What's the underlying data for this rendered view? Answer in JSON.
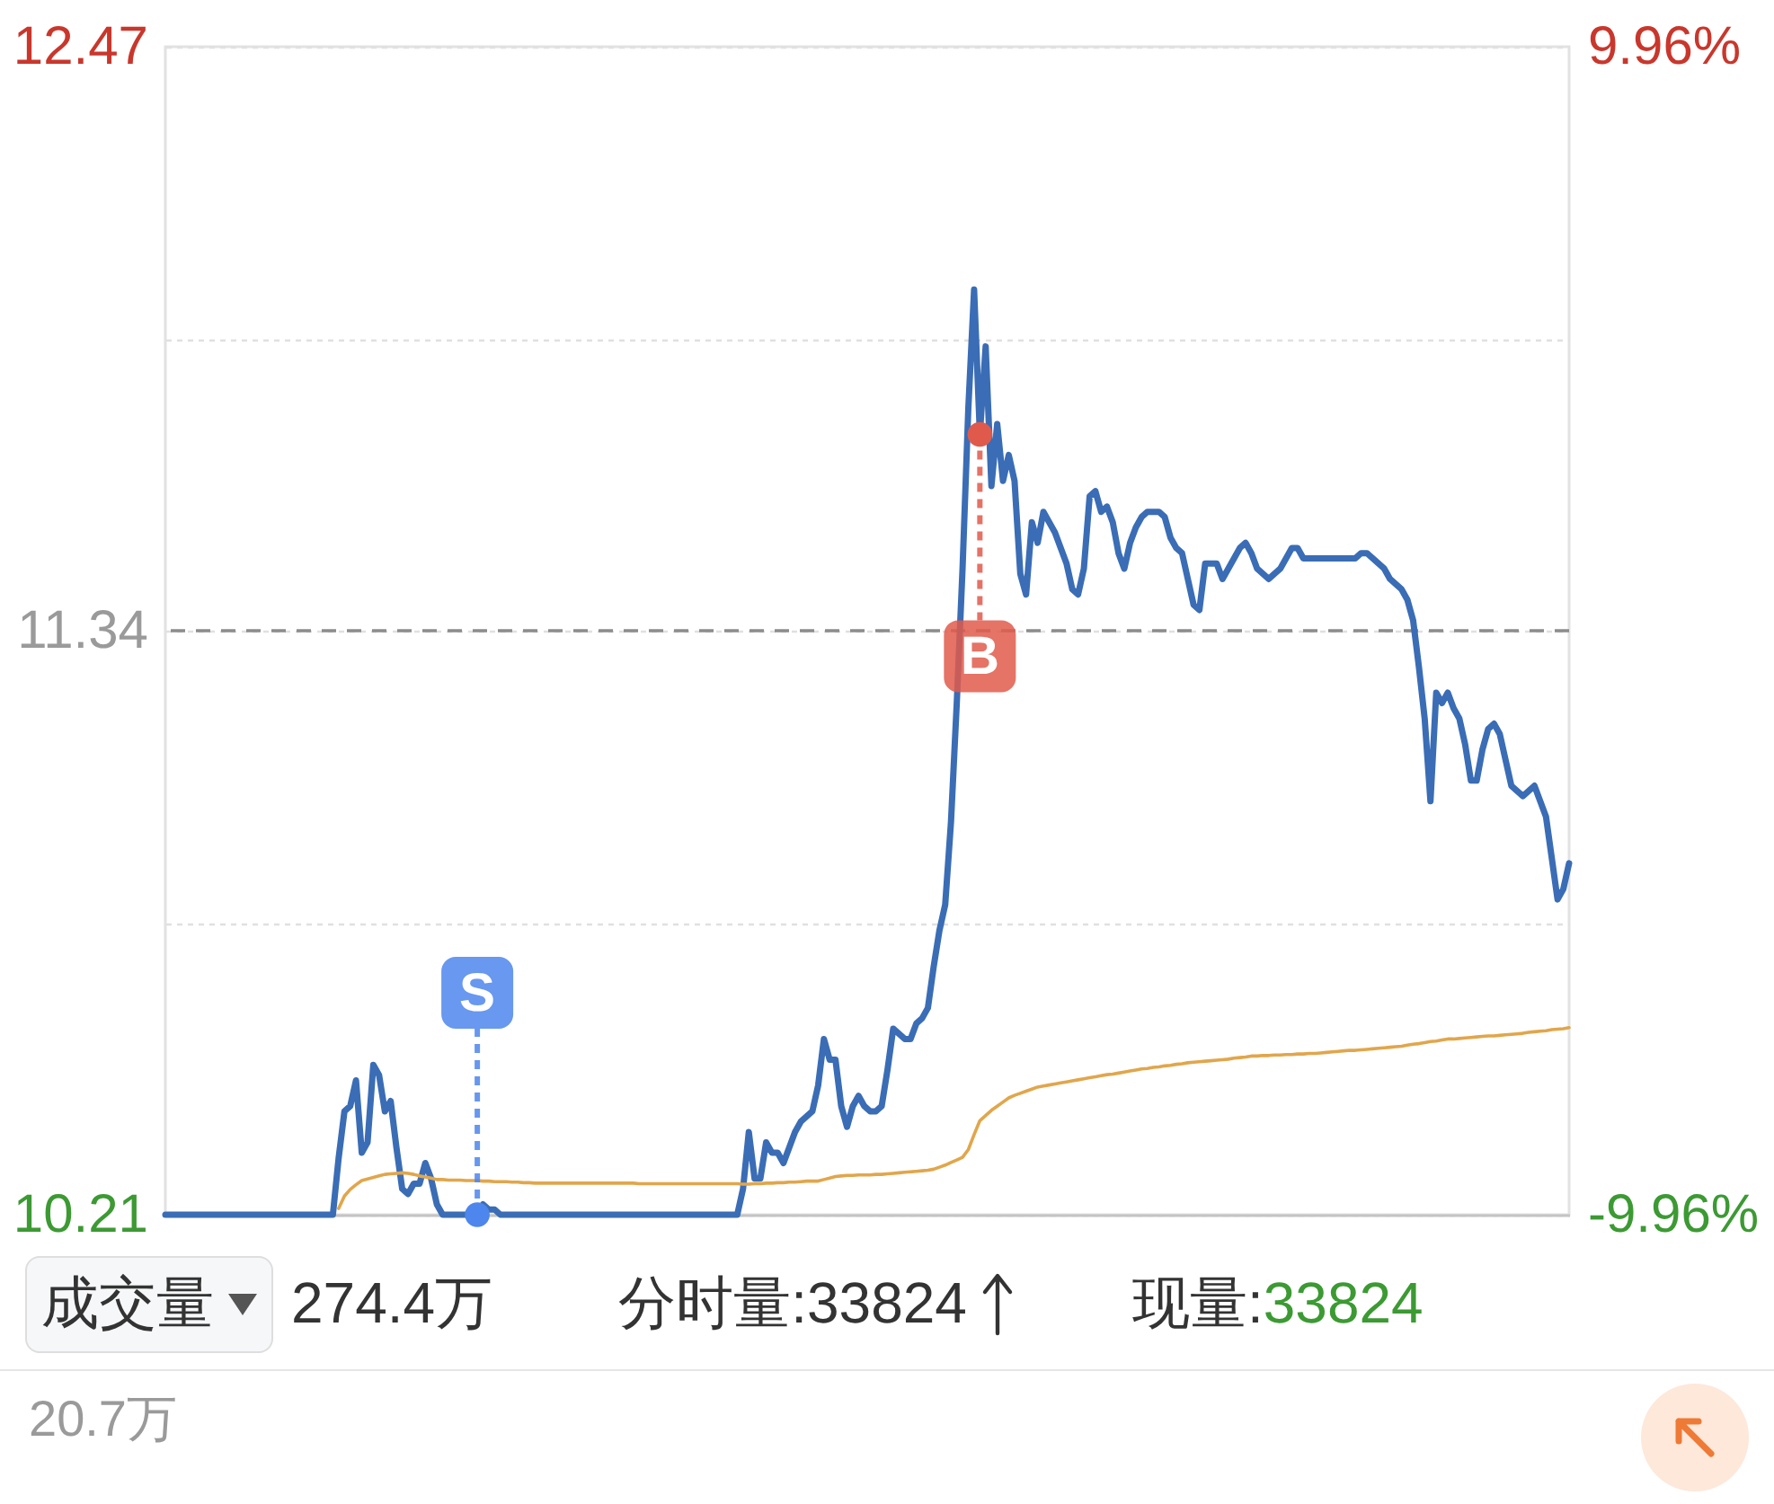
{
  "chart_data": {
    "type": "line",
    "categories": [
      null,
      null,
      null,
      null,
      null,
      null,
      null,
      null,
      null,
      null,
      null,
      null,
      null,
      null,
      null,
      null,
      null,
      null,
      null,
      null,
      null,
      null,
      null,
      null,
      null,
      null,
      null,
      null,
      null,
      null,
      null,
      null,
      null,
      null,
      null,
      null,
      null,
      null,
      null,
      null,
      null,
      null,
      null,
      null,
      null,
      null,
      null,
      null,
      null,
      null,
      null,
      null,
      null,
      null,
      null,
      null,
      null,
      null,
      null,
      null,
      null,
      null,
      null,
      null,
      null,
      null,
      null,
      null,
      null,
      null,
      null,
      null,
      null,
      null,
      null,
      null,
      null,
      null,
      null,
      null,
      null,
      null,
      null,
      null,
      null,
      null,
      null,
      null,
      null,
      null,
      null,
      null,
      null,
      null,
      null,
      null,
      null,
      null,
      null,
      null,
      null,
      null,
      null,
      null,
      null,
      null,
      null,
      null,
      null,
      null,
      null,
      null,
      null,
      null,
      null,
      null,
      null,
      null,
      null,
      null,
      null,
      null,
      null,
      null,
      null,
      null,
      null,
      null,
      null,
      null,
      null,
      null,
      null,
      null,
      null,
      null,
      null,
      null,
      null,
      null,
      null,
      null,
      null,
      null,
      null,
      null,
      null,
      null,
      null,
      null,
      null,
      null,
      null,
      null,
      null,
      null,
      null,
      null,
      null,
      null,
      null,
      null,
      null,
      null,
      null,
      null,
      null,
      null,
      null,
      null,
      null,
      null,
      null,
      null,
      null,
      null,
      null,
      null,
      null,
      null,
      null,
      null,
      null,
      null,
      null,
      null,
      null,
      null,
      null,
      null,
      null,
      null,
      null,
      null,
      null,
      null,
      null,
      null,
      null,
      null,
      null,
      null,
      null,
      null,
      null,
      null,
      null,
      null,
      null,
      null,
      null,
      null,
      null,
      null,
      null,
      null,
      null,
      null,
      null,
      null,
      null,
      null,
      null,
      null,
      null,
      null,
      null,
      null,
      null,
      null,
      null,
      null,
      null,
      null,
      null,
      null,
      null,
      null,
      null,
      null,
      null,
      null,
      null,
      null
    ],
    "series": [
      {
        "color": "#3a6db5",
        "values": [
          10.21,
          10.21,
          10.21,
          10.21,
          10.21,
          10.21,
          10.21,
          10.21,
          10.21,
          10.21,
          10.21,
          10.21,
          10.21,
          10.21,
          10.21,
          10.21,
          10.21,
          10.21,
          10.21,
          10.21,
          10.21,
          10.21,
          10.21,
          10.21,
          10.21,
          10.21,
          10.21,
          10.21,
          10.21,
          10.21,
          10.32,
          10.41,
          10.42,
          10.47,
          10.33,
          10.35,
          10.5,
          10.48,
          10.41,
          10.43,
          10.34,
          10.26,
          10.25,
          10.27,
          10.27,
          10.31,
          10.28,
          10.23,
          10.21,
          10.21,
          10.21,
          10.21,
          10.21,
          10.21,
          10.21,
          10.23,
          10.22,
          10.22,
          10.21,
          10.21,
          10.21,
          10.21,
          10.21,
          10.21,
          10.21,
          10.21,
          10.21,
          10.21,
          10.21,
          10.21,
          10.21,
          10.21,
          10.21,
          10.21,
          10.21,
          10.21,
          10.21,
          10.21,
          10.21,
          10.21,
          10.21,
          10.21,
          10.21,
          10.21,
          10.21,
          10.21,
          10.21,
          10.21,
          10.21,
          10.21,
          10.21,
          10.21,
          10.21,
          10.21,
          10.21,
          10.21,
          10.21,
          10.21,
          10.21,
          10.21,
          10.26,
          10.37,
          10.28,
          10.28,
          10.35,
          10.33,
          10.33,
          10.31,
          10.34,
          10.37,
          10.39,
          10.4,
          10.41,
          10.46,
          10.55,
          10.51,
          10.51,
          10.42,
          10.38,
          10.42,
          10.44,
          10.42,
          10.41,
          10.41,
          10.42,
          10.49,
          10.57,
          10.56,
          10.55,
          10.55,
          10.58,
          10.59,
          10.61,
          10.69,
          10.76,
          10.81,
          10.97,
          11.2,
          11.46,
          11.77,
          12.0,
          11.72,
          11.89,
          11.62,
          11.74,
          11.63,
          11.68,
          11.63,
          11.45,
          11.41,
          11.55,
          11.51,
          11.57,
          11.55,
          11.53,
          11.5,
          11.47,
          11.42,
          11.41,
          11.46,
          11.6,
          11.61,
          11.57,
          11.58,
          11.55,
          11.49,
          11.46,
          11.51,
          11.54,
          11.56,
          11.57,
          11.57,
          11.57,
          11.56,
          11.52,
          11.5,
          11.49,
          11.44,
          11.39,
          11.38,
          11.47,
          11.47,
          11.47,
          11.44,
          11.46,
          11.48,
          11.5,
          11.51,
          11.49,
          11.46,
          11.45,
          11.44,
          11.45,
          11.46,
          11.48,
          11.5,
          11.5,
          11.48,
          11.48,
          11.48,
          11.48,
          11.48,
          11.48,
          11.48,
          11.48,
          11.48,
          11.48,
          11.49,
          11.49,
          11.48,
          11.47,
          11.46,
          11.44,
          11.43,
          11.42,
          11.4,
          11.36,
          11.27,
          11.17,
          11.01,
          11.22,
          11.2,
          11.22,
          11.19,
          11.17,
          11.12,
          11.05,
          11.05,
          11.11,
          11.15,
          11.16,
          11.14,
          11.09,
          11.04,
          11.03,
          11.02,
          11.03,
          11.04,
          11.01,
          10.98,
          10.9,
          10.82,
          10.84,
          10.89
        ]
      },
      {
        "color": "#e1a64b",
        "values": [
          null,
          null,
          null,
          null,
          null,
          null,
          null,
          null,
          null,
          null,
          null,
          null,
          null,
          null,
          null,
          null,
          null,
          null,
          null,
          null,
          null,
          null,
          null,
          null,
          null,
          null,
          null,
          null,
          null,
          null,
          10.222,
          10.246,
          10.259,
          10.268,
          10.276,
          10.279,
          10.282,
          10.285,
          10.288,
          10.289,
          10.29,
          10.291,
          10.29,
          10.288,
          10.285,
          10.283,
          10.281,
          10.278,
          10.278,
          10.277,
          10.277,
          10.277,
          10.276,
          10.276,
          10.276,
          10.275,
          10.275,
          10.274,
          10.274,
          10.274,
          10.273,
          10.273,
          10.272,
          10.272,
          10.271,
          10.271,
          10.271,
          10.271,
          10.271,
          10.271,
          10.271,
          10.271,
          10.271,
          10.271,
          10.271,
          10.271,
          10.271,
          10.271,
          10.271,
          10.271,
          10.271,
          10.271,
          10.27,
          10.27,
          10.27,
          10.27,
          10.27,
          10.27,
          10.27,
          10.27,
          10.27,
          10.27,
          10.27,
          10.27,
          10.27,
          10.27,
          10.27,
          10.27,
          10.27,
          10.27,
          10.269,
          10.269,
          10.27,
          10.27,
          10.271,
          10.271,
          10.272,
          10.272,
          10.273,
          10.273,
          10.274,
          10.275,
          10.275,
          10.275,
          10.278,
          10.281,
          10.284,
          10.285,
          10.286,
          10.286,
          10.287,
          10.287,
          10.287,
          10.288,
          10.288,
          10.289,
          10.29,
          10.291,
          10.292,
          10.293,
          10.294,
          10.295,
          10.296,
          10.298,
          10.302,
          10.306,
          10.311,
          10.316,
          10.321,
          10.336,
          10.365,
          10.392,
          10.402,
          10.412,
          10.42,
          10.428,
          10.436,
          10.441,
          10.445,
          10.449,
          10.453,
          10.457,
          10.459,
          10.461,
          10.463,
          10.465,
          10.467,
          10.469,
          10.471,
          10.473,
          10.475,
          10.477,
          10.479,
          10.481,
          10.482,
          10.484,
          10.486,
          10.488,
          10.49,
          10.492,
          10.493,
          10.495,
          10.496,
          10.498,
          10.499,
          10.501,
          10.502,
          10.504,
          10.505,
          10.506,
          10.507,
          10.508,
          10.509,
          10.51,
          10.511,
          10.513,
          10.514,
          10.515,
          10.517,
          10.517,
          10.518,
          10.518,
          10.519,
          10.519,
          10.52,
          10.52,
          10.521,
          10.521,
          10.522,
          10.522,
          10.523,
          10.524,
          10.525,
          10.526,
          10.527,
          10.528,
          10.528,
          10.529,
          10.53,
          10.531,
          10.532,
          10.533,
          10.534,
          10.535,
          10.536,
          10.538,
          10.54,
          10.541,
          10.543,
          10.545,
          10.546,
          10.548,
          10.55,
          10.55,
          10.551,
          10.552,
          10.553,
          10.554,
          10.555,
          10.556,
          10.556,
          10.557,
          10.558,
          10.559,
          10.56,
          10.561,
          10.563,
          10.564,
          10.565,
          10.566,
          10.568,
          10.569,
          10.57,
          10.572
        ]
      },
      {
        "type": "scatter",
        "name": "B",
        "color": "#e05a4b",
        "marker": "circle",
        "values": [
          null,
          null,
          null,
          null,
          null,
          null,
          null,
          null,
          null,
          null,
          null,
          null,
          null,
          null,
          null,
          null,
          null,
          null,
          null,
          null,
          null,
          null,
          null,
          null,
          null,
          null,
          null,
          null,
          null,
          null,
          null,
          null,
          null,
          null,
          null,
          null,
          null,
          null,
          null,
          null,
          null,
          null,
          null,
          null,
          null,
          null,
          null,
          null,
          null,
          null,
          null,
          null,
          null,
          null,
          null,
          null,
          null,
          null,
          null,
          null,
          null,
          null,
          null,
          null,
          null,
          null,
          null,
          null,
          null,
          null,
          null,
          null,
          null,
          null,
          null,
          null,
          null,
          null,
          null,
          null,
          null,
          null,
          null,
          null,
          null,
          null,
          null,
          null,
          null,
          null,
          null,
          null,
          null,
          null,
          null,
          null,
          null,
          null,
          null,
          null,
          null,
          null,
          null,
          null,
          null,
          null,
          null,
          null,
          null,
          null,
          null,
          null,
          null,
          null,
          null,
          null,
          null,
          null,
          null,
          null,
          null,
          null,
          null,
          null,
          null,
          null,
          null,
          null,
          null,
          null,
          null,
          null,
          null,
          null,
          null,
          null,
          null,
          null,
          null,
          null,
          null,
          11.72,
          null,
          null,
          null,
          null,
          null,
          null,
          null,
          null,
          null,
          null,
          null,
          null,
          null,
          null,
          null,
          null,
          null,
          null,
          null,
          null,
          null,
          null,
          null,
          null,
          null,
          null,
          null,
          null,
          null,
          null,
          null,
          null,
          null,
          null,
          null,
          null,
          null,
          null,
          null,
          null,
          null,
          null,
          null,
          null,
          null,
          null,
          null,
          null,
          null,
          null,
          null,
          null,
          null,
          null,
          null,
          null,
          null,
          null,
          null,
          null,
          null,
          null,
          null,
          null,
          null,
          null,
          null,
          null,
          null,
          null,
          null,
          null,
          null,
          null,
          null,
          null,
          null,
          null,
          null,
          null,
          null,
          null,
          null,
          null,
          null,
          null,
          null,
          null,
          null,
          null,
          null,
          null,
          null,
          null,
          null,
          null,
          null,
          null,
          null,
          null,
          null,
          null
        ]
      },
      {
        "type": "scatter",
        "name": "S",
        "color": "#4d86ec",
        "marker": "circle",
        "values": [
          null,
          null,
          null,
          null,
          null,
          null,
          null,
          null,
          null,
          null,
          null,
          null,
          null,
          null,
          null,
          null,
          null,
          null,
          null,
          null,
          null,
          null,
          null,
          null,
          null,
          null,
          null,
          null,
          null,
          null,
          null,
          null,
          null,
          null,
          null,
          null,
          null,
          null,
          null,
          null,
          null,
          null,
          null,
          null,
          null,
          null,
          null,
          null,
          null,
          null,
          null,
          null,
          null,
          null,
          10.21,
          null,
          null,
          null,
          null,
          null,
          null,
          null,
          null,
          null,
          null,
          null,
          null,
          null,
          null,
          null,
          null,
          null,
          null,
          null,
          null,
          null,
          null,
          null,
          null,
          null,
          null,
          null,
          null,
          null,
          null,
          null,
          null,
          null,
          null,
          null,
          null,
          null,
          null,
          null,
          null,
          null,
          null,
          null,
          null,
          null,
          null,
          null,
          null,
          null,
          null,
          null,
          null,
          null,
          null,
          null,
          null,
          null,
          null,
          null,
          null,
          null,
          null,
          null,
          null,
          null,
          null,
          null,
          null,
          null,
          null,
          null,
          null,
          null,
          null,
          null,
          null,
          null,
          null,
          null,
          null,
          null,
          null,
          null,
          null,
          null,
          null,
          null,
          null,
          null,
          null,
          null,
          null,
          null,
          null,
          null,
          null,
          null,
          null,
          null,
          null,
          null,
          null,
          null,
          null,
          null,
          null,
          null,
          null,
          null,
          null,
          null,
          null,
          null,
          null,
          null,
          null,
          null,
          null,
          null,
          null,
          null,
          null,
          null,
          null,
          null,
          null,
          null,
          null,
          null,
          null,
          null,
          null,
          null,
          null,
          null,
          null,
          null,
          null,
          null,
          null,
          null,
          null,
          null,
          null,
          null,
          null,
          null,
          null,
          null,
          null,
          null,
          null,
          null,
          null,
          null,
          null,
          null,
          null,
          null,
          null,
          null,
          null,
          null,
          null,
          null,
          null,
          null,
          null,
          null,
          null,
          null,
          null,
          null,
          null,
          null,
          null,
          null,
          null,
          null,
          null,
          null,
          null,
          null,
          null,
          null,
          null,
          null,
          null,
          null
        ]
      }
    ],
    "ylim": [
      10.21,
      12.47
    ],
    "yticks": [
      12.47,
      {
        "value": 11.905,
        "label": null
      },
      11.34,
      {
        "value": 10.775,
        "label": null
      },
      10.21
    ],
    "y2lim": [
      -9.96,
      9.96
    ],
    "y2ticks": [
      {
        "value": 9.96,
        "label": "9.96%"
      },
      {
        "value": -9.96,
        "label": "-9.96%"
      }
    ],
    "ref_lines": [
      {
        "axis": "y2",
        "value": 0,
        "color": "#8c8c8c",
        "line_style": "dashed"
      }
    ],
    "grid": "y",
    "annotations": [
      "成交量",
      "274.4万",
      "分时量:33824",
      "现量:33824",
      "20.7万"
    ]
  }
}
